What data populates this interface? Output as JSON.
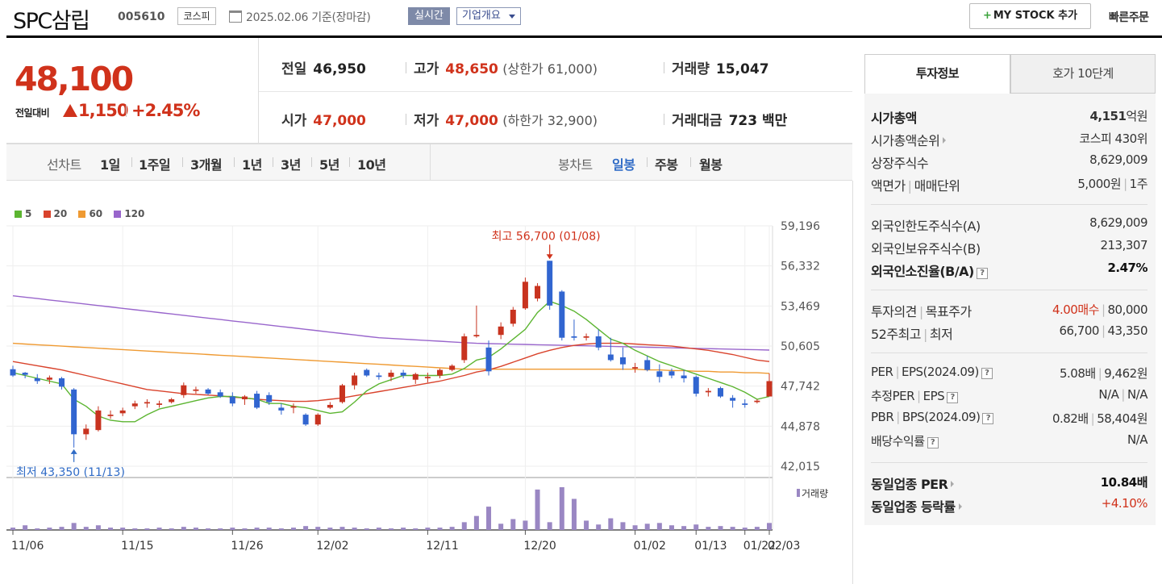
{
  "header": {
    "company_name": "SPC삼립",
    "code": "005610",
    "market": "코스피",
    "date": "2025.02.06 기준(장마감)",
    "realtime": "실시간",
    "company_info": "기업개요",
    "my_stock": "MY STOCK 추가",
    "quick_order": "빠른주문"
  },
  "price": {
    "current": "48,100",
    "diff_label": "전일대비",
    "diff_value": "1,150",
    "diff_pct": "+2.45%",
    "color_up": "#d0321b"
  },
  "summary": {
    "prev_label": "전일",
    "prev": "46,950",
    "high_label": "고가",
    "high": "48,650",
    "upper_limit": "(상한가 61,000)",
    "vol_label": "거래량",
    "vol": "15,047",
    "open_label": "시가",
    "open": "47,000",
    "low_label": "저가",
    "low": "47,000",
    "lower_limit": "(하한가 32,900)",
    "amount_label": "거래대금",
    "amount": "723 백만"
  },
  "period": {
    "line_label": "선차트",
    "line_items": [
      "1일",
      "1주일",
      "3개월",
      "1년",
      "3년",
      "5년",
      "10년"
    ],
    "candle_label": "봉차트",
    "candle_items": [
      "일봉",
      "주봉",
      "월봉"
    ]
  },
  "legend": [
    {
      "name": "5",
      "color": "#5cb531"
    },
    {
      "name": "20",
      "color": "#d9432c"
    },
    {
      "name": "60",
      "color": "#ef9a32"
    },
    {
      "name": "120",
      "color": "#9966cc"
    }
  ],
  "annotations": {
    "high": "최고 56,700 (01/08)",
    "low": "최저 43,350 (11/13)",
    "volume_label": "거래량"
  },
  "chart_data": {
    "type": "candlestick",
    "y_ticks": [
      "59,196",
      "56,332",
      "53,469",
      "50,605",
      "47,742",
      "44,878",
      "42,015"
    ],
    "ylim": [
      42015,
      59196
    ],
    "x_ticks": [
      "11/06",
      "11/15",
      "11/26",
      "12/02",
      "12/11",
      "12/20",
      "01/02",
      "01/13",
      "01/22",
      "02/03"
    ],
    "candles": [
      [
        48950,
        49200,
        48400,
        48500
      ],
      [
        48700,
        48750,
        48300,
        48550
      ],
      [
        48300,
        48600,
        47900,
        48100
      ],
      [
        48200,
        48500,
        47900,
        48350
      ],
      [
        48300,
        48400,
        47500,
        47700
      ],
      [
        47500,
        47600,
        43350,
        44300
      ],
      [
        44300,
        45000,
        43900,
        44700
      ],
      [
        44600,
        46300,
        44500,
        46000
      ],
      [
        45600,
        46000,
        45400,
        45700
      ],
      [
        45800,
        46200,
        45600,
        46000
      ],
      [
        46300,
        46700,
        46100,
        46500
      ],
      [
        46500,
        46800,
        46200,
        46600
      ],
      [
        46400,
        46700,
        46200,
        46500
      ],
      [
        46600,
        46900,
        46500,
        46800
      ],
      [
        47100,
        48000,
        46900,
        47800
      ],
      [
        47400,
        47700,
        47200,
        47500
      ],
      [
        47500,
        47600,
        47100,
        47200
      ],
      [
        47300,
        47500,
        46900,
        47000
      ],
      [
        47000,
        47300,
        46300,
        46500
      ],
      [
        46800,
        47100,
        46400,
        47000
      ],
      [
        47200,
        47400,
        46100,
        46200
      ],
      [
        47100,
        47300,
        46400,
        46600
      ],
      [
        46200,
        46500,
        45700,
        46000
      ],
      [
        46200,
        46500,
        45800,
        46300
      ],
      [
        45700,
        45800,
        44900,
        45000
      ],
      [
        45000,
        45800,
        44900,
        45700
      ],
      [
        46200,
        46600,
        46100,
        46400
      ],
      [
        46600,
        47900,
        46500,
        47800
      ],
      [
        47800,
        48700,
        47500,
        48500
      ],
      [
        48900,
        49000,
        48400,
        48500
      ],
      [
        48500,
        48700,
        48200,
        48400
      ],
      [
        48400,
        48900,
        48100,
        48700
      ],
      [
        48700,
        48900,
        48300,
        48500
      ],
      [
        48200,
        48700,
        47900,
        48600
      ],
      [
        48300,
        48700,
        48000,
        48400
      ],
      [
        48500,
        49000,
        48300,
        48900
      ],
      [
        48900,
        49300,
        48800,
        49200
      ],
      [
        49600,
        51500,
        49400,
        51300
      ],
      [
        51300,
        53500,
        51200,
        51400
      ],
      [
        50500,
        51000,
        48500,
        48800
      ],
      [
        51400,
        52300,
        51100,
        52000
      ],
      [
        52200,
        53400,
        52000,
        53200
      ],
      [
        53300,
        55500,
        53200,
        55200
      ],
      [
        54000,
        55100,
        53800,
        54900
      ],
      [
        56700,
        56700,
        53200,
        53500
      ],
      [
        54500,
        54600,
        51000,
        51200
      ],
      [
        51300,
        52500,
        51000,
        51200
      ],
      [
        51200,
        51500,
        51000,
        51300
      ],
      [
        51300,
        51800,
        50300,
        50500
      ],
      [
        50000,
        51200,
        49500,
        49600
      ],
      [
        49800,
        50500,
        48900,
        49300
      ],
      [
        49000,
        49400,
        48700,
        49100
      ],
      [
        49600,
        49900,
        48800,
        48900
      ],
      [
        48800,
        49300,
        48000,
        48400
      ],
      [
        48800,
        49000,
        48300,
        48500
      ],
      [
        48500,
        48900,
        48000,
        48300
      ],
      [
        48400,
        48500,
        47000,
        47200
      ],
      [
        47300,
        47600,
        47000,
        47400
      ],
      [
        47600,
        47700,
        46900,
        47000
      ],
      [
        46900,
        47100,
        46200,
        46700
      ],
      [
        46500,
        46800,
        46200,
        46400
      ],
      [
        46600,
        46800,
        46500,
        46700
      ],
      [
        47000,
        48650,
        47000,
        48100
      ]
    ],
    "volume": [
      3,
      6,
      2,
      3,
      4,
      9,
      4,
      6,
      3,
      3,
      2,
      2,
      3,
      2,
      4,
      3,
      2,
      2,
      3,
      2,
      3,
      3,
      2,
      3,
      5,
      4,
      3,
      4,
      3,
      2,
      3,
      2,
      3,
      2,
      3,
      3,
      4,
      10,
      18,
      30,
      8,
      14,
      12,
      52,
      10,
      55,
      40,
      12,
      7,
      15,
      10,
      6,
      8,
      9,
      6,
      5,
      7,
      4,
      5,
      4,
      3,
      4,
      9
    ],
    "ma5": [
      48700,
      48500,
      48300,
      48100,
      47900,
      46800,
      46300,
      45600,
      45300,
      45200,
      45200,
      45700,
      46100,
      46300,
      46500,
      46700,
      46900,
      47000,
      47000,
      46900,
      46800,
      46500,
      46500,
      46300,
      46200,
      46000,
      45800,
      45900,
      46600,
      47400,
      47900,
      48200,
      48500,
      48500,
      48500,
      48500,
      48600,
      49000,
      49600,
      49800,
      50400,
      51100,
      51800,
      53000,
      53800,
      53500,
      53100,
      52500,
      51800,
      51100,
      50800,
      50300,
      49900,
      49500,
      49200,
      48900,
      48600,
      48300,
      48000,
      47700,
      47300,
      46800,
      47000
    ],
    "ma20": [
      49500,
      49350,
      49200,
      49050,
      48900,
      48700,
      48500,
      48300,
      48100,
      47900,
      47700,
      47500,
      47400,
      47300,
      47200,
      47150,
      47100,
      47050,
      46950,
      46900,
      46800,
      46750,
      46700,
      46650,
      46650,
      46700,
      46800,
      46900,
      47050,
      47200,
      47350,
      47500,
      47650,
      47800,
      47950,
      48100,
      48300,
      48500,
      48750,
      48900,
      49150,
      49450,
      49750,
      50050,
      50300,
      50500,
      50650,
      50750,
      50800,
      50800,
      50800,
      50750,
      50700,
      50650,
      50600,
      50500,
      50400,
      50300,
      50150,
      50000,
      49800,
      49600,
      49500
    ],
    "ma60": [
      50800,
      50750,
      50700,
      50650,
      50600,
      50550,
      50500,
      50450,
      50400,
      50350,
      50300,
      50250,
      50200,
      50150,
      50100,
      50050,
      50000,
      49950,
      49900,
      49850,
      49800,
      49750,
      49700,
      49650,
      49600,
      49550,
      49500,
      49450,
      49400,
      49350,
      49300,
      49250,
      49200,
      49150,
      49100,
      49050,
      49000,
      48950,
      48950,
      48950,
      48950,
      48950,
      48950,
      48950,
      48950,
      48950,
      48950,
      48950,
      48950,
      48950,
      48950,
      48950,
      48900,
      48900,
      48850,
      48850,
      48800,
      48800,
      48750,
      48750,
      48700,
      48700,
      48650
    ],
    "ma120": [
      54200,
      54100,
      54000,
      53900,
      53800,
      53700,
      53600,
      53500,
      53400,
      53300,
      53200,
      53100,
      53000,
      52900,
      52800,
      52700,
      52600,
      52500,
      52400,
      52300,
      52200,
      52100,
      52000,
      51900,
      51800,
      51700,
      51600,
      51500,
      51400,
      51300,
      51200,
      51150,
      51100,
      51050,
      51000,
      50950,
      50900,
      50850,
      50800,
      50780,
      50760,
      50740,
      50720,
      50700,
      50680,
      50660,
      50640,
      50620,
      50600,
      50580,
      50560,
      50540,
      50520,
      50500,
      50480,
      50460,
      50440,
      50420,
      50400,
      50380,
      50360,
      50340,
      50320
    ]
  },
  "info_panel": {
    "tab_invest": "투자정보",
    "tab_hoga": "호가 10단계",
    "market_cap_label": "시가총액",
    "market_cap_value": "4,151",
    "market_cap_unit": "억원",
    "cap_rank_label": "시가총액순위",
    "cap_rank_value": "코스피 430위",
    "listed_shares_label": "상장주식수",
    "listed_shares_value": "8,629,009",
    "par_label": "액면가",
    "trade_unit_label": "매매단위",
    "par_value": "5,000원",
    "trade_unit_value": "1주",
    "foreign_limit_label": "외국인한도주식수(A)",
    "foreign_limit_value": "8,629,009",
    "foreign_hold_label": "외국인보유주식수(B)",
    "foreign_hold_value": "213,307",
    "foreign_ratio_label": "외국인소진율(B/A)",
    "foreign_ratio_value": "2.47%",
    "opinion_label": "투자의견",
    "target_label": "목표주가",
    "opinion_value": "4.00매수",
    "target_value": "80,000",
    "week52_label": "52주최고",
    "week52_low_label": "최저",
    "week52_high_value": "66,700",
    "week52_low_value": "43,350",
    "per_label": "PER",
    "eps_label": "EPS(2024.09)",
    "per_value": "5.08배",
    "eps_value": "9,462원",
    "est_per_label": "추정PER",
    "est_eps_label": "EPS",
    "est_per_value": "N/A",
    "est_eps_value": "N/A",
    "pbr_label": "PBR",
    "bps_label": "BPS(2024.09)",
    "pbr_value": "0.82배",
    "bps_value": "58,404원",
    "div_label": "배당수익률",
    "div_value": "N/A",
    "sector_per_label": "동일업종 PER",
    "sector_per_value": "10.84배",
    "sector_change_label": "동일업종 등락률",
    "sector_change_value": "+4.10%"
  }
}
